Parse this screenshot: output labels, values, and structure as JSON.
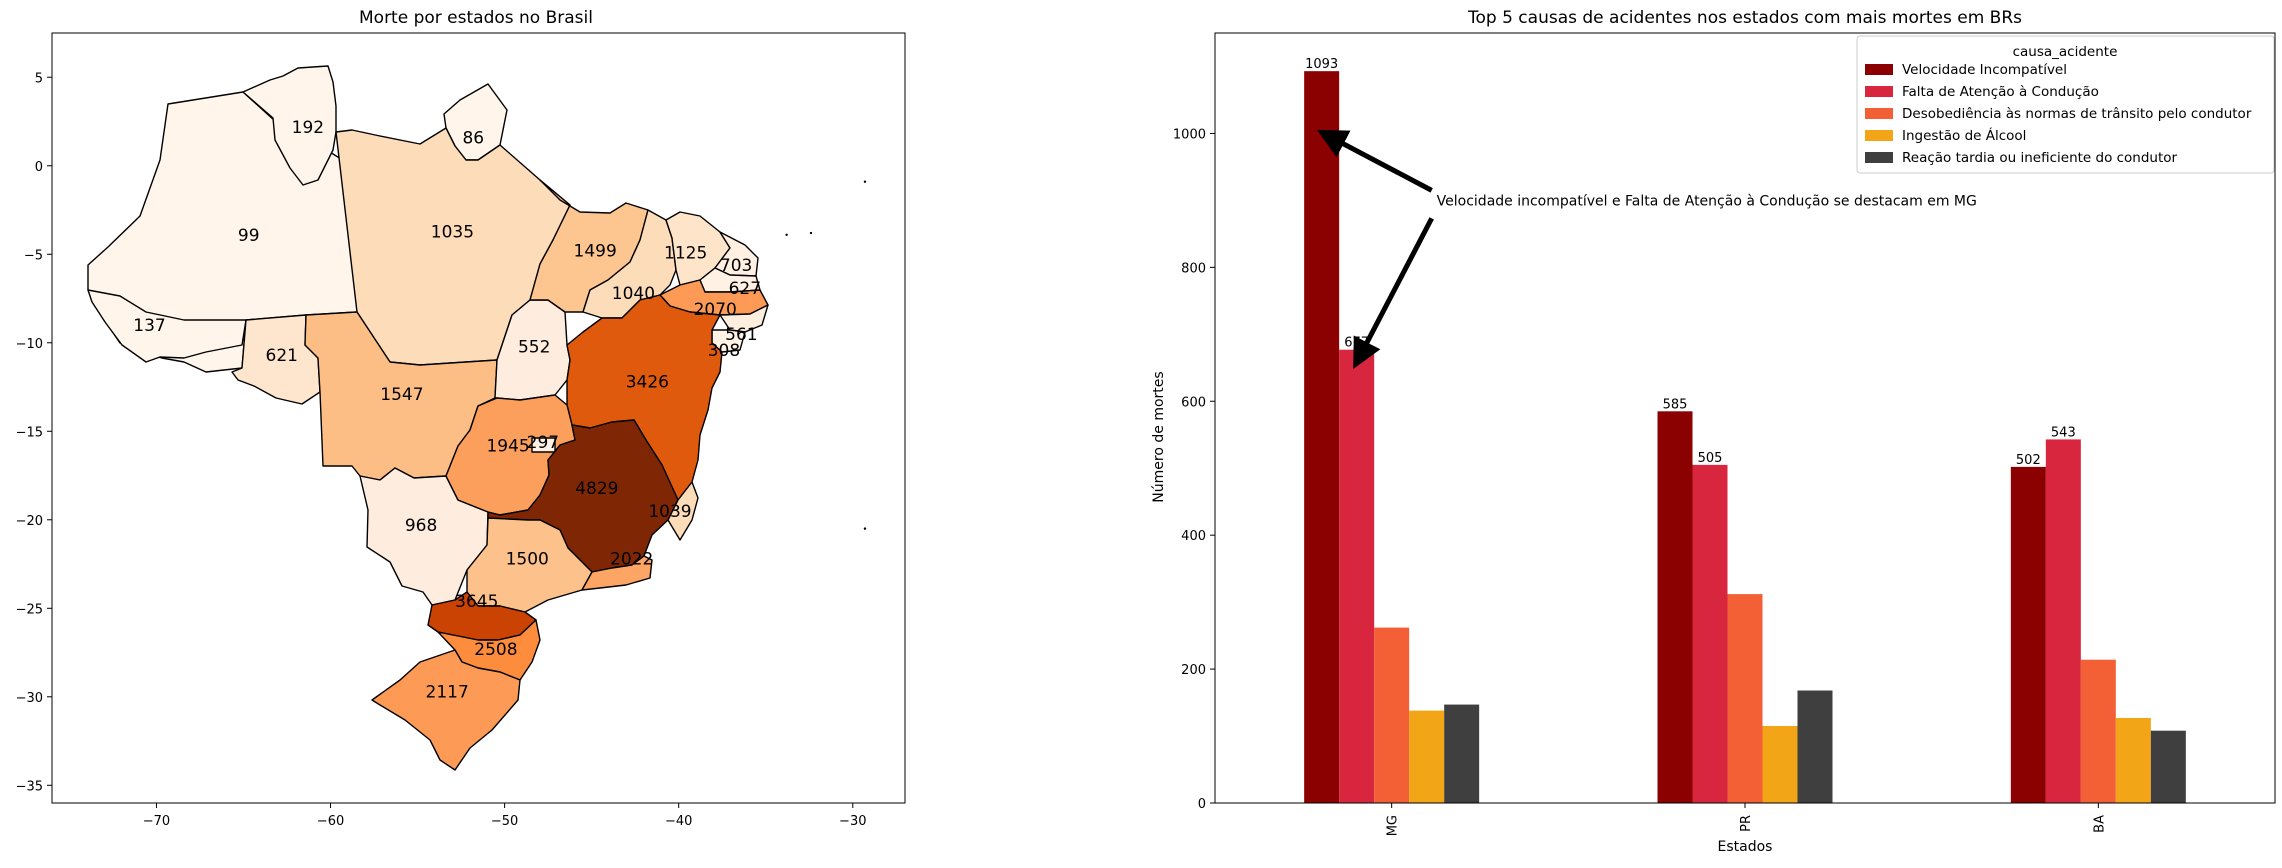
{
  "chart_data": [
    {
      "type": "map",
      "title": "Morte por estados no Brasil",
      "colormap": "Oranges",
      "xlim": [
        -76,
        -27
      ],
      "ylim": [
        -36,
        7.5
      ],
      "xticks": [
        -70,
        -60,
        -50,
        -40,
        -30
      ],
      "yticks": [
        5,
        0,
        -5,
        -10,
        -15,
        -20,
        -25,
        -30,
        -35
      ],
      "xtick_labels": [
        "−70",
        "−60",
        "−50",
        "−40",
        "−30"
      ],
      "ytick_labels": [
        "5",
        "0",
        "−5",
        "−10",
        "−15",
        "−20",
        "−25",
        "−30",
        "−35"
      ],
      "states": [
        {
          "label": "192",
          "value": 192,
          "lon": -61.3,
          "lat": 2.2
        },
        {
          "label": "86",
          "value": 86,
          "lon": -51.8,
          "lat": 1.6
        },
        {
          "label": "99",
          "value": 99,
          "lon": -64.7,
          "lat": -3.9
        },
        {
          "label": "1035",
          "value": 1035,
          "lon": -53.0,
          "lat": -3.7
        },
        {
          "label": "1499",
          "value": 1499,
          "lon": -44.8,
          "lat": -4.8
        },
        {
          "label": "1125",
          "value": 1125,
          "lon": -39.6,
          "lat": -4.9
        },
        {
          "label": "703",
          "value": 703,
          "lon": -36.7,
          "lat": -5.6
        },
        {
          "label": "627",
          "value": 627,
          "lon": -36.2,
          "lat": -6.9
        },
        {
          "label": "1040",
          "value": 1040,
          "lon": -42.6,
          "lat": -7.2
        },
        {
          "label": "2070",
          "value": 2070,
          "lon": -37.9,
          "lat": -8.1
        },
        {
          "label": "137",
          "value": 137,
          "lon": -70.4,
          "lat": -9.0
        },
        {
          "label": "561",
          "value": 561,
          "lon": -36.4,
          "lat": -9.5
        },
        {
          "label": "621",
          "value": 621,
          "lon": -62.8,
          "lat": -10.7
        },
        {
          "label": "552",
          "value": 552,
          "lon": -48.3,
          "lat": -10.2
        },
        {
          "label": "308",
          "value": 308,
          "lon": -37.4,
          "lat": -10.4
        },
        {
          "label": "3426",
          "value": 3426,
          "lon": -41.8,
          "lat": -12.2
        },
        {
          "label": "1547",
          "value": 1547,
          "lon": -55.9,
          "lat": -12.9
        },
        {
          "label": "1945",
          "value": 1945,
          "lon": -49.8,
          "lat": -15.8
        },
        {
          "label": "297",
          "value": 297,
          "lon": -47.8,
          "lat": -15.6
        },
        {
          "label": "4829",
          "value": 4829,
          "lon": -44.7,
          "lat": -18.2
        },
        {
          "label": "1039",
          "value": 1039,
          "lon": -40.5,
          "lat": -19.5
        },
        {
          "label": "968",
          "value": 968,
          "lon": -54.8,
          "lat": -20.3
        },
        {
          "label": "1500",
          "value": 1500,
          "lon": -48.7,
          "lat": -22.2
        },
        {
          "label": "2022",
          "value": 2022,
          "lon": -42.7,
          "lat": -22.2
        },
        {
          "label": "3645",
          "value": 3645,
          "lon": -51.6,
          "lat": -24.6
        },
        {
          "label": "2508",
          "value": 2508,
          "lon": -50.5,
          "lat": -27.3
        },
        {
          "label": "2117",
          "value": 2117,
          "lon": -53.3,
          "lat": -29.7
        }
      ]
    },
    {
      "type": "bar",
      "title": "Top 5 causas de acidentes nos estados com mais mortes em BRs",
      "xlabel": "Estados",
      "ylabel": "Número de mortes",
      "categories": [
        "MG",
        "PR",
        "BA"
      ],
      "ylim": [
        0,
        1150
      ],
      "yticks": [
        0,
        200,
        400,
        600,
        800,
        1000
      ],
      "legend_title": "causa_acidente",
      "legend_placement": "top-right",
      "series": [
        {
          "name": "Velocidade Incompatível",
          "color": "#8b0000",
          "values": [
            1093,
            585,
            502
          ]
        },
        {
          "name": "Falta de Atenção à Condução",
          "color": "#d7263d",
          "values": [
            677,
            505,
            543
          ]
        },
        {
          "name": "Desobediência às normas de trânsito pelo condutor",
          "color": "#f46036",
          "values": [
            262,
            312,
            214
          ]
        },
        {
          "name": "Ingestão de Álcool",
          "color": "#f2a516",
          "values": [
            138,
            115,
            127
          ]
        },
        {
          "name": "Reação tardia ou ineficiente do condutor",
          "color": "#3f3f3f",
          "values": [
            147,
            168,
            108
          ]
        }
      ],
      "bar_labels": [
        {
          "series": 0,
          "category": 0,
          "label": "1093"
        },
        {
          "series": 1,
          "category": 0,
          "label": "677"
        },
        {
          "series": 0,
          "category": 1,
          "label": "585"
        },
        {
          "series": 1,
          "category": 1,
          "label": "505"
        },
        {
          "series": 0,
          "category": 2,
          "label": "502"
        },
        {
          "series": 1,
          "category": 2,
          "label": "543"
        }
      ],
      "annotation": {
        "text": "Velocidade incompatível e Falta de Atenção à Condução se destacam em MG",
        "text_at": {
          "category": 0.25,
          "value": 900
        },
        "arrow_targets": [
          {
            "series": 0,
            "category": 0,
            "value": 1000
          },
          {
            "series": 1,
            "category": 0,
            "value": 700
          }
        ]
      }
    }
  ]
}
